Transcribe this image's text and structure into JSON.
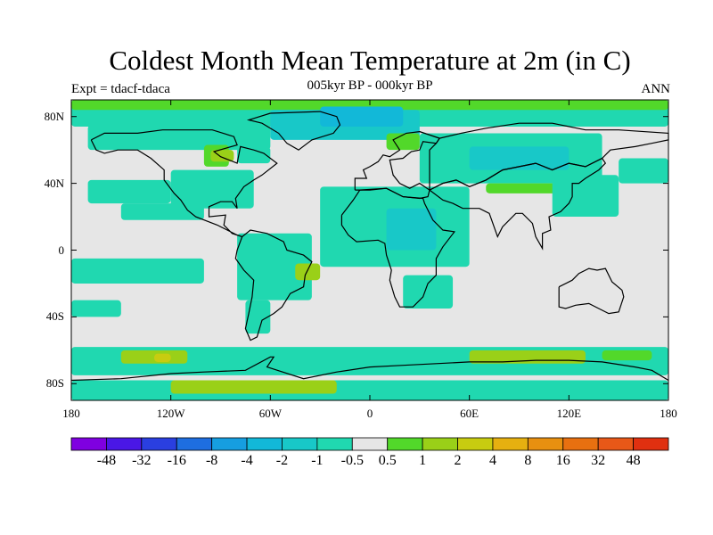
{
  "title": "Coldest Month Mean Temperature at 2m (in C)",
  "subtitle": "005kyr BP - 000kyr BP",
  "left_label": "Expt = tdacf-tdaca",
  "right_label": "ANN",
  "map": {
    "lon_range": [
      -180,
      180
    ],
    "lat_range": [
      -90,
      90
    ],
    "x_ticks": [
      "180",
      "120W",
      "60W",
      "0",
      "60E",
      "120E",
      "180"
    ],
    "x_tick_lons": [
      -180,
      -120,
      -60,
      0,
      60,
      120,
      180
    ],
    "y_ticks": [
      "80N",
      "40N",
      "0",
      "40S",
      "80S"
    ],
    "y_tick_lats": [
      80,
      40,
      0,
      -40,
      -80
    ],
    "background_color": "#e6e6e6",
    "coastline_color": "#000000"
  },
  "colorbar": {
    "colors": [
      "#7f00e0",
      "#4a17e6",
      "#2a3fe0",
      "#1e6ee0",
      "#169ee0",
      "#12b8d8",
      "#18c8c8",
      "#20d8b0",
      "#e6e6e6",
      "#52d82a",
      "#9ad018",
      "#c8cc10",
      "#e6b010",
      "#e89010",
      "#e87010",
      "#e85818",
      "#e03010"
    ],
    "labels": [
      "-48",
      "-32",
      "-16",
      "-8",
      "-4",
      "-2",
      "-1",
      "-0.5",
      "0.5",
      "1",
      "2",
      "4",
      "8",
      "16",
      "32",
      "48"
    ]
  }
}
